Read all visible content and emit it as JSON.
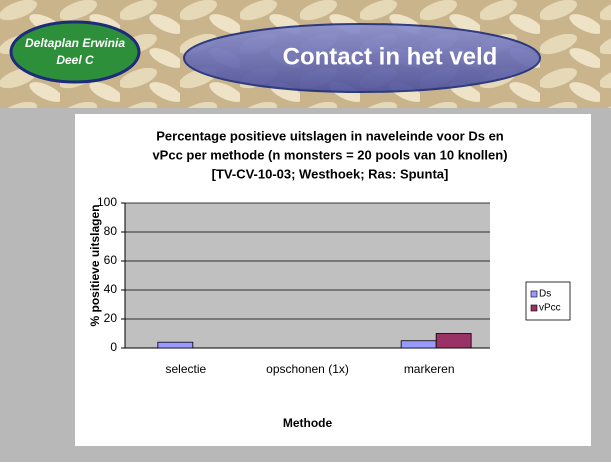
{
  "header": {
    "badge": [
      "Deltaplan Erwinia",
      "Deel C"
    ],
    "title": "Contact in het veld"
  },
  "chart_data": {
    "type": "bar",
    "title": [
      "Percentage positieve uitslagen in naveleinde voor Ds en",
      "vPcc per methode (n monsters = 20 pools van 10 knollen)",
      "[TV-CV-10-03; Westhoek; Ras: Spunta]"
    ],
    "x_label": "Methode",
    "y_label": "% positieve uitslagen",
    "categories": [
      "selectie",
      "opschonen (1x)",
      "markeren"
    ],
    "series": [
      {
        "name": "Ds",
        "color": "#9999ff",
        "values": [
          4,
          0,
          5
        ]
      },
      {
        "name": "vPcc",
        "color": "#993366",
        "values": [
          0,
          0,
          10
        ]
      }
    ],
    "ylim": [
      0,
      100
    ],
    "yticks": [
      0,
      20,
      40,
      60,
      80,
      100
    ],
    "grid": true,
    "legend": "right"
  }
}
